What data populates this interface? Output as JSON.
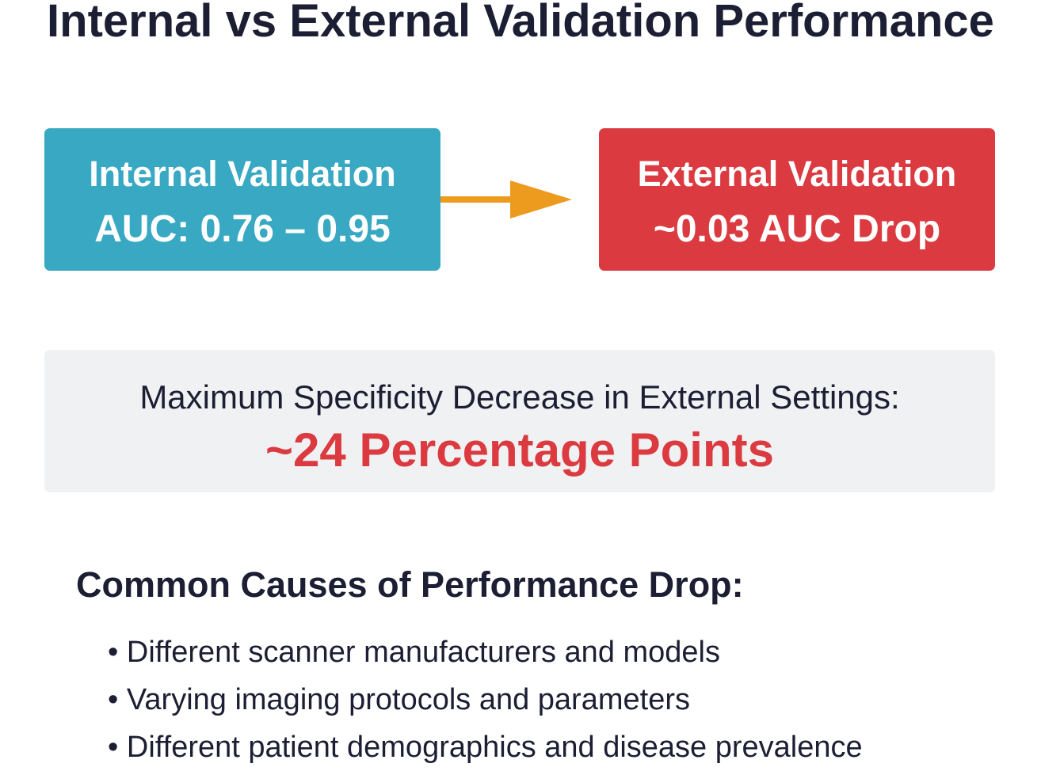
{
  "title": "Internal vs External Validation Performance",
  "internal": {
    "heading": "Internal Validation",
    "value": "AUC: 0.76 – 0.95"
  },
  "external": {
    "heading": "External Validation",
    "value": "~0.03 AUC Drop"
  },
  "specificity": {
    "label": "Maximum Specificity Decrease in External Settings:",
    "value": "~24 Percentage Points"
  },
  "causes": {
    "heading": "Common Causes of Performance Drop:",
    "items": [
      "Different scanner manufacturers and models",
      "Varying imaging protocols and parameters",
      "Different patient demographics and disease prevalence"
    ]
  },
  "colors": {
    "internal_box": "#38a8c3",
    "external_box": "#db3b40",
    "arrow": "#ec9b1f",
    "panel": "#f0f1f3",
    "highlight": "#db3b40",
    "text": "#1c1f33"
  }
}
